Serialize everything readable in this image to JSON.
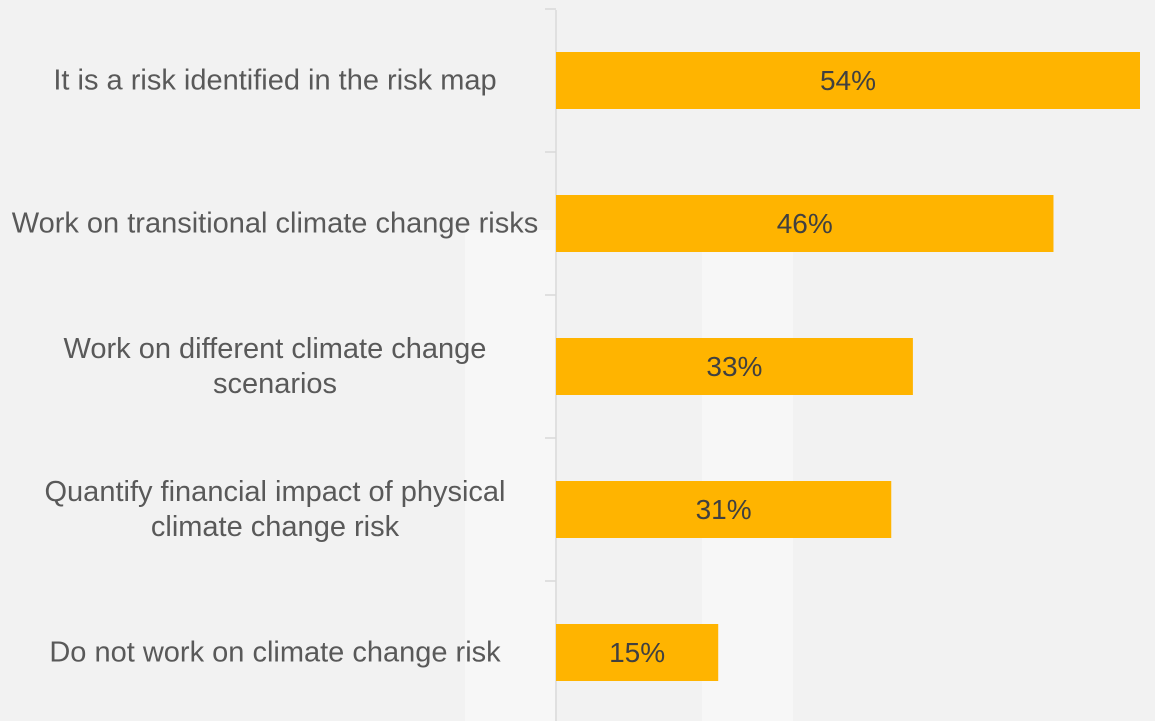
{
  "chart_data": {
    "type": "bar",
    "orientation": "horizontal",
    "categories": [
      "It is a risk identified in the risk map",
      "Work on transitional climate change risks",
      "Work on different climate change scenarios",
      "Quantify financial impact of physical climate change risk",
      "Do not work on climate change risk"
    ],
    "values": [
      54,
      46,
      33,
      31,
      15
    ],
    "value_labels": [
      "54%",
      "46%",
      "33%",
      "31%",
      "15%"
    ],
    "color": "#ffb400"
  }
}
